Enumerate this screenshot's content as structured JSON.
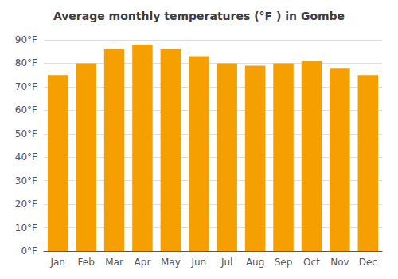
{
  "chart_data": {
    "type": "bar",
    "title": "Average monthly temperatures (°F ) in Gombe",
    "categories": [
      "Jan",
      "Feb",
      "Mar",
      "Apr",
      "May",
      "Jun",
      "Jul",
      "Aug",
      "Sep",
      "Oct",
      "Nov",
      "Dec"
    ],
    "values": [
      75,
      80,
      86,
      88,
      86,
      83,
      80,
      79,
      80,
      81,
      78,
      75
    ],
    "color": "#F5A000",
    "ylim": [
      0,
      90
    ],
    "yticks": [
      {
        "value": 0,
        "label": "0°F"
      },
      {
        "value": 10,
        "label": "10°F"
      },
      {
        "value": 20,
        "label": "20°F"
      },
      {
        "value": 30,
        "label": "30°F"
      },
      {
        "value": 40,
        "label": "40°F"
      },
      {
        "value": 50,
        "label": "50°F"
      },
      {
        "value": 60,
        "label": "60°F"
      },
      {
        "value": 70,
        "label": "70°F"
      },
      {
        "value": 80,
        "label": "80°F"
      },
      {
        "value": 90,
        "label": "90°F"
      }
    ],
    "grid": true
  }
}
